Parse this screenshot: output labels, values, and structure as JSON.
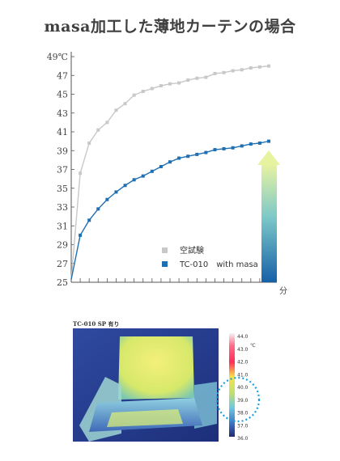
{
  "title": "masa加工した薄地カーテンの場合",
  "thermal_label": "TC-010 SP 有り",
  "colors": {
    "control": "#c8c8c8",
    "masa": "#1f6fb3",
    "arrow_top": "#e8f3a0",
    "arrow_bottom": "#1660a8",
    "axis": "#555555"
  },
  "chart_data": {
    "type": "line",
    "xlabel": "分",
    "ylabel": "℃",
    "ylim": [
      25,
      49
    ],
    "yticks": [
      25,
      27,
      29,
      31,
      33,
      35,
      37,
      39,
      41,
      43,
      45,
      47,
      49
    ],
    "ytick_labels": [
      "25",
      "27",
      "29",
      "31",
      "33",
      "35",
      "37",
      "39",
      "41",
      "43",
      "45",
      "47",
      "49℃"
    ],
    "x": [
      0,
      1,
      2,
      3,
      4,
      5,
      6,
      7,
      8,
      9,
      10,
      11,
      12,
      13,
      14,
      15,
      16,
      17,
      18,
      19,
      20,
      21,
      22
    ],
    "legend_placement": "bottom-right",
    "series": [
      {
        "name": "空試験",
        "color": "#c8c8c8",
        "values": [
          25.3,
          36.6,
          39.8,
          41.2,
          42.0,
          43.3,
          44.0,
          44.9,
          45.3,
          45.6,
          45.9,
          46.1,
          46.2,
          46.5,
          46.7,
          46.8,
          47.2,
          47.3,
          47.5,
          47.6,
          47.8,
          47.9,
          48.0
        ]
      },
      {
        "name": "TC-010　with masa",
        "color": "#1f6fb3",
        "values": [
          25.3,
          30.0,
          31.6,
          32.8,
          33.8,
          34.6,
          35.3,
          35.9,
          36.3,
          36.8,
          37.3,
          37.8,
          38.2,
          38.4,
          38.6,
          38.8,
          39.1,
          39.2,
          39.3,
          39.5,
          39.7,
          39.8,
          40.0
        ]
      }
    ]
  },
  "thermal_scale": {
    "labels": [
      "44.0",
      "43.0",
      "42.0",
      "41.0",
      "40.0",
      "39.0",
      "38.0",
      "37.0",
      "36.0"
    ],
    "unit": "℃"
  }
}
